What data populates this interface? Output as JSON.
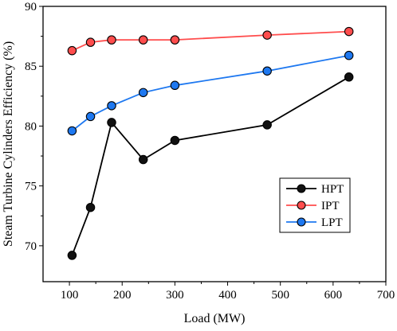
{
  "chart_data": {
    "type": "line",
    "xlabel": "Load (MW)",
    "ylabel": "Steam Turbine Cylinders Efficiency (%)",
    "xlim": [
      50,
      700
    ],
    "ylim": [
      67,
      90
    ],
    "xticks": [
      100,
      200,
      300,
      400,
      500,
      600,
      700
    ],
    "yticks": [
      70,
      75,
      80,
      85,
      90
    ],
    "legend_position": "right-middle",
    "series": [
      {
        "name": "HPT",
        "color": "#000000",
        "marker_fill": "#111111",
        "x": [
          105,
          140,
          180,
          240,
          300,
          475,
          630
        ],
        "y": [
          69.2,
          73.2,
          80.3,
          77.2,
          78.8,
          80.1,
          84.1
        ]
      },
      {
        "name": "IPT",
        "color": "#ff4d4d",
        "marker_fill": "#ff4d4d",
        "x": [
          105,
          140,
          180,
          240,
          300,
          475,
          630
        ],
        "y": [
          86.3,
          87.0,
          87.2,
          87.2,
          87.2,
          87.6,
          87.9
        ]
      },
      {
        "name": "LPT",
        "color": "#1e78f0",
        "marker_fill": "#1e78f0",
        "x": [
          105,
          140,
          180,
          240,
          300,
          475,
          630
        ],
        "y": [
          79.6,
          80.8,
          81.7,
          82.8,
          83.4,
          84.6,
          85.9
        ]
      }
    ]
  }
}
